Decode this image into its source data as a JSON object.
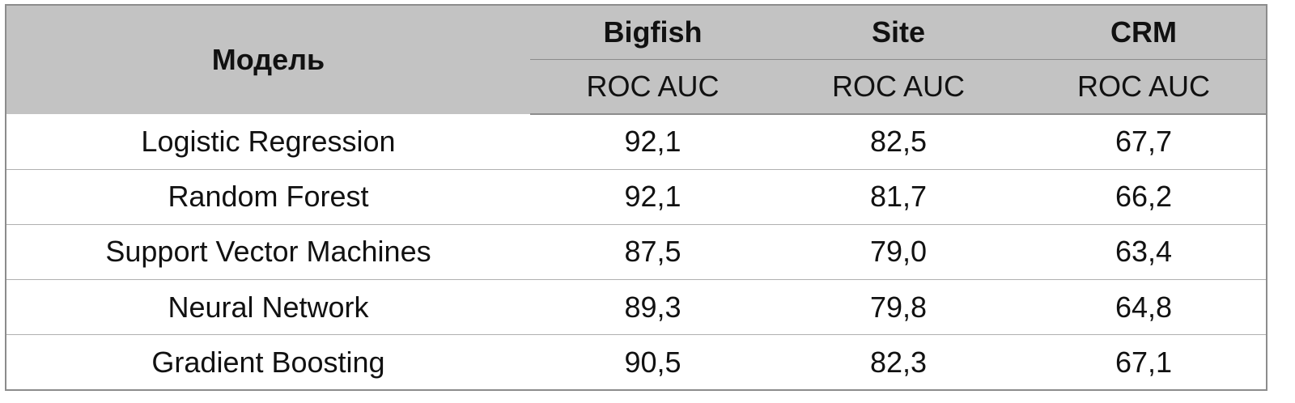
{
  "table": {
    "header": {
      "model": "Модель",
      "columns": [
        {
          "name": "Bigfish",
          "metric": "ROC AUC"
        },
        {
          "name": "Site",
          "metric": "ROC AUC"
        },
        {
          "name": "CRM",
          "metric": "ROC AUC"
        }
      ]
    },
    "rows": [
      [
        "Logistic Regression",
        "92,1",
        "82,5",
        "67,7"
      ],
      [
        "Random Forest",
        "92,1",
        "81,7",
        "66,2"
      ],
      [
        "Support Vector Machines",
        "87,5",
        "79,0",
        "63,4"
      ],
      [
        "Neural Network",
        "89,3",
        "79,8",
        "64,8"
      ],
      [
        "Gradient Boosting",
        "90,5",
        "82,3",
        "67,1"
      ]
    ]
  }
}
